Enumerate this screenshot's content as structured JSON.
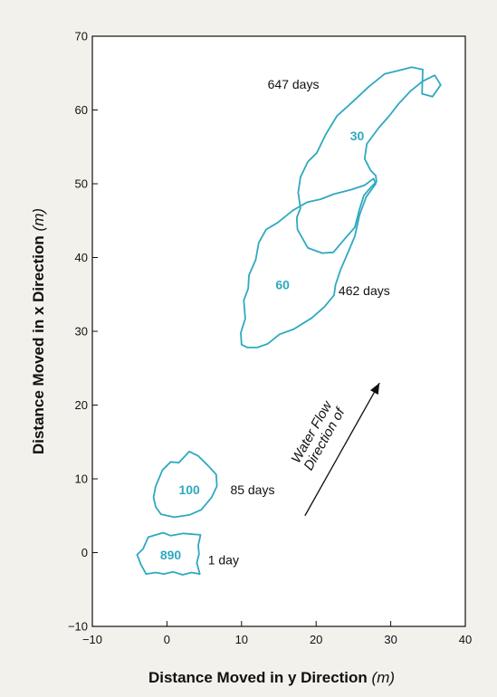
{
  "chart_data": {
    "type": "contour",
    "xlabel": "Distance Moved in y Direction",
    "xlabel_unit": "(m)",
    "ylabel": "Distance Moved in x Direction",
    "ylabel_unit": "(m)",
    "xlim": [
      -10,
      40
    ],
    "ylim": [
      -10,
      70
    ],
    "x_ticks": [
      -10,
      0,
      10,
      20,
      30,
      40
    ],
    "y_ticks": [
      -10,
      0,
      10,
      20,
      30,
      40,
      50,
      60,
      70
    ],
    "x_tick_labels": [
      "−10",
      "0",
      "10",
      "20",
      "30",
      "40"
    ],
    "y_tick_labels": [
      "−10",
      "0",
      "10",
      "20",
      "30",
      "40",
      "50",
      "60",
      "70"
    ],
    "line_color": "#2fa9c0",
    "plumes": [
      {
        "time_label": "1 day",
        "concentration_label": "890",
        "time_label_pos": [
          5.5,
          -1
        ],
        "concentration_label_pos": [
          0.5,
          -0.3
        ],
        "outline": [
          [
            -3.2,
            0.5
          ],
          [
            -2.5,
            2.1
          ],
          [
            -0.5,
            2.7
          ],
          [
            0.5,
            2.3
          ],
          [
            2.2,
            2.6
          ],
          [
            4.5,
            2.4
          ],
          [
            4.2,
            1.0
          ],
          [
            4.3,
            -0.2
          ],
          [
            4.0,
            -1.4
          ],
          [
            4.4,
            -2.9
          ],
          [
            3.3,
            -2.7
          ],
          [
            2.1,
            -3.0
          ],
          [
            0.8,
            -2.6
          ],
          [
            -0.4,
            -2.9
          ],
          [
            -1.5,
            -2.7
          ],
          [
            -2.8,
            -2.9
          ],
          [
            -3.5,
            -1.6
          ],
          [
            -3.8,
            -0.8
          ],
          [
            -4.0,
            -0.3
          ]
        ]
      },
      {
        "time_label": "85 days",
        "concentration_label": "100",
        "time_label_pos": [
          8.5,
          8.5
        ],
        "concentration_label_pos": [
          3,
          8.5
        ],
        "outline": [
          [
            -1.5,
            9
          ],
          [
            -0.6,
            11.2
          ],
          [
            0.5,
            12.3
          ],
          [
            1.6,
            12.2
          ],
          [
            3.0,
            13.7
          ],
          [
            4.2,
            13.1
          ],
          [
            5.5,
            11.8
          ],
          [
            6.6,
            10.6
          ],
          [
            6.7,
            9.0
          ],
          [
            6.0,
            7.5
          ],
          [
            4.6,
            5.8
          ],
          [
            3.0,
            5.1
          ],
          [
            1.0,
            4.8
          ],
          [
            -0.8,
            5.2
          ],
          [
            -1.5,
            6.2
          ],
          [
            -1.8,
            7.5
          ]
        ]
      },
      {
        "time_label": "462 days",
        "concentration_label": "60",
        "time_label_pos": [
          23,
          35.5
        ],
        "concentration_label_pos": [
          15.5,
          36.3
        ],
        "outline": [
          [
            10.0,
            28.2
          ],
          [
            9.9,
            29.8
          ],
          [
            10.5,
            31.7
          ],
          [
            10.3,
            34.2
          ],
          [
            10.9,
            35.8
          ],
          [
            11.0,
            37.6
          ],
          [
            11.9,
            39.7
          ],
          [
            12.3,
            42.0
          ],
          [
            13.3,
            43.8
          ],
          [
            14.8,
            44.7
          ],
          [
            16.9,
            46.4
          ],
          [
            18.8,
            47.5
          ],
          [
            20.6,
            47.9
          ],
          [
            22.4,
            48.6
          ],
          [
            24.7,
            49.2
          ],
          [
            26.5,
            49.8
          ],
          [
            27.7,
            50.7
          ],
          [
            28.0,
            50.0
          ],
          [
            26.7,
            48.2
          ],
          [
            25.8,
            45.7
          ],
          [
            25.2,
            42.9
          ],
          [
            24.4,
            41.0
          ],
          [
            23.3,
            38.4
          ],
          [
            22.6,
            36.3
          ],
          [
            22.4,
            34.9
          ],
          [
            21.1,
            33.3
          ],
          [
            19.4,
            31.8
          ],
          [
            17.0,
            30.3
          ],
          [
            15.1,
            29.6
          ],
          [
            13.5,
            28.3
          ],
          [
            12.1,
            27.8
          ],
          [
            10.8,
            27.8
          ]
        ]
      },
      {
        "time_label": "647 days",
        "concentration_label": "30",
        "time_label_pos": [
          13.5,
          63.5
        ],
        "concentration_label_pos": [
          25.5,
          56.5
        ],
        "outline": [
          [
            17.5,
            43.8
          ],
          [
            18.9,
            41.3
          ],
          [
            20.8,
            40.6
          ],
          [
            22.3,
            40.7
          ],
          [
            23.9,
            42.6
          ],
          [
            25.2,
            44.1
          ],
          [
            25.8,
            46.5
          ],
          [
            26.4,
            48.4
          ],
          [
            27.4,
            49.6
          ],
          [
            28.1,
            50.3
          ],
          [
            28.0,
            51.1
          ],
          [
            27.3,
            51.8
          ],
          [
            26.5,
            53.4
          ],
          [
            26.8,
            55.4
          ],
          [
            28.4,
            57.6
          ],
          [
            29.8,
            59.2
          ],
          [
            31.1,
            60.9
          ],
          [
            32.7,
            62.6
          ],
          [
            34.3,
            63.9
          ],
          [
            35.9,
            64.7
          ],
          [
            36.7,
            63.4
          ],
          [
            35.6,
            61.8
          ],
          [
            34.2,
            62.2
          ],
          [
            34.3,
            65.5
          ],
          [
            32.8,
            65.8
          ],
          [
            30.9,
            65.3
          ],
          [
            29.2,
            64.9
          ],
          [
            27.0,
            63.1
          ],
          [
            25.0,
            61.2
          ],
          [
            22.8,
            59.2
          ],
          [
            21.3,
            56.7
          ],
          [
            20.1,
            54.2
          ],
          [
            18.9,
            53.0
          ],
          [
            17.9,
            50.9
          ],
          [
            17.6,
            48.8
          ],
          [
            17.9,
            46.7
          ],
          [
            17.4,
            45.4
          ]
        ]
      }
    ],
    "flow_arrow": {
      "label_line1": "Direction of",
      "label_line2": "Water Flow",
      "from": [
        18.5,
        5
      ],
      "to": [
        28.5,
        23
      ]
    }
  }
}
